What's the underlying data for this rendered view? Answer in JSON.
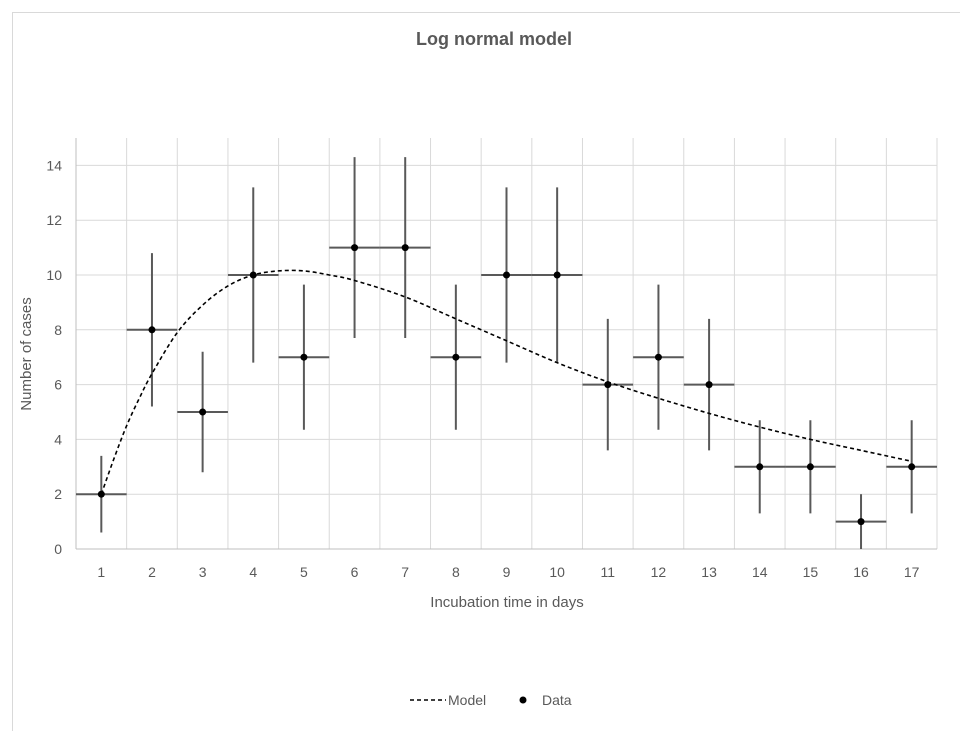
{
  "chart_data": {
    "type": "scatter",
    "title": "Log normal model",
    "xlabel": "Incubation time in days",
    "ylabel": "Number of cases",
    "categories": [
      "1",
      "2",
      "3",
      "4",
      "5",
      "6",
      "7",
      "8",
      "9",
      "10",
      "11",
      "12",
      "13",
      "14",
      "15",
      "16",
      "17"
    ],
    "xlim": [
      0.5,
      17.5
    ],
    "ylim": [
      0,
      15
    ],
    "yticks": [
      0,
      2,
      4,
      6,
      8,
      10,
      12,
      14
    ],
    "grid": true,
    "legend_position": "bottom",
    "series": [
      {
        "name": "Model",
        "style": "dashed-line",
        "x": [
          1,
          1.25,
          1.5,
          1.75,
          2,
          2.5,
          3,
          3.5,
          4,
          4.5,
          5,
          5.5,
          6,
          7,
          8,
          9,
          10,
          11,
          12,
          13,
          14,
          15,
          16,
          17
        ],
        "values": [
          2.0,
          3.3,
          4.5,
          5.5,
          6.4,
          7.9,
          8.9,
          9.6,
          10.0,
          10.15,
          10.15,
          10.0,
          9.8,
          9.2,
          8.4,
          7.6,
          6.8,
          6.1,
          5.5,
          4.95,
          4.45,
          4.0,
          3.6,
          3.2
        ]
      },
      {
        "name": "Data",
        "style": "markers",
        "x": [
          1,
          2,
          3,
          4,
          5,
          6,
          7,
          8,
          9,
          10,
          11,
          12,
          13,
          14,
          15,
          16,
          17
        ],
        "values": [
          2,
          8,
          5,
          10,
          7,
          11,
          11,
          7,
          10,
          10,
          6,
          7,
          6,
          3,
          3,
          1,
          3
        ],
        "error_low": [
          0.6,
          5.2,
          2.8,
          6.8,
          4.35,
          7.7,
          7.7,
          4.35,
          6.8,
          6.8,
          3.6,
          4.35,
          3.6,
          1.3,
          1.3,
          0.0,
          1.3
        ],
        "error_high": [
          3.4,
          10.8,
          7.2,
          13.2,
          9.65,
          14.3,
          14.3,
          9.65,
          13.2,
          13.2,
          8.4,
          9.65,
          8.4,
          4.7,
          4.7,
          2.0,
          4.7
        ],
        "x_error": 0.5
      }
    ],
    "colors": {
      "grid": "#d9d9d9",
      "axis": "#bfbfbf",
      "text": "#595959",
      "marker": "#000000",
      "errorbar": "#595959",
      "model": "#000000"
    }
  }
}
